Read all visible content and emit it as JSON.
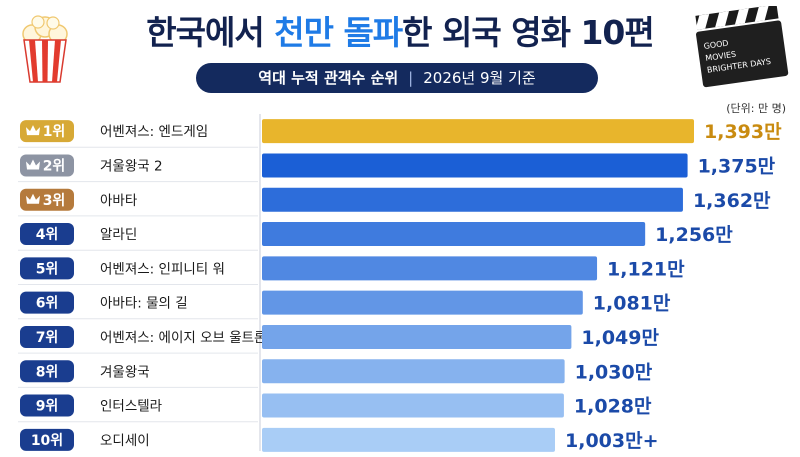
{
  "header": {
    "title_part1": "한국에서 ",
    "title_highlight1": "천만",
    "title_space": " ",
    "title_highlight2": "돌파",
    "title_part2": "한 외국 영화 10편",
    "subtitle_main": "역대 누적 관객수 순위",
    "subtitle_sep": "|",
    "subtitle_date": "2026년 9월 기준",
    "unit": "(단위: 만 명)"
  },
  "clapperboard": {
    "lines": [
      "GOOD",
      "MOVIES",
      "BRIGHTER DAYS"
    ]
  },
  "icons": {
    "popcorn": "popcorn-icon",
    "clapperboard": "clapperboard-icon",
    "crown": "crown-icon"
  },
  "colors": {
    "navy": "#142a5e",
    "gold_bar": "#e8b52c",
    "gold_badge": "#d7a936",
    "silver_badge": "#8d94a3",
    "bronze_badge": "#b57a3c",
    "rank_badge": "#1a3d8f",
    "blue_dark": "#1b5fd6",
    "blue_light": "#a9cdf6",
    "gold_text": "#c98b10",
    "blue_text": "#1b4aa8"
  },
  "chart_data": {
    "type": "bar",
    "orientation": "horizontal",
    "ranks": [
      "1위",
      "2위",
      "3위",
      "4위",
      "5위",
      "6위",
      "7위",
      "8위",
      "9위",
      "10위"
    ],
    "categories": [
      "어벤져스: 엔드게임",
      "겨울왕국 2",
      "아바타",
      "알라딘",
      "어벤져스: 인피니티 워",
      "아바타: 물의 길",
      "어벤져스: 에이지 오브 울트론",
      "겨울왕국",
      "인터스텔라",
      "오디세이"
    ],
    "values": [
      1393,
      1375,
      1362,
      1256,
      1121,
      1081,
      1049,
      1030,
      1028,
      1003
    ],
    "value_labels": [
      "1,393만",
      "1,375만",
      "1,362만",
      "1,256만",
      "1,121만",
      "1,081만",
      "1,049만",
      "1,030만",
      "1,028만",
      "1,003만+"
    ],
    "unit": "만 명",
    "xlim": [
      0,
      1393
    ],
    "grid": false,
    "legend": "none"
  }
}
